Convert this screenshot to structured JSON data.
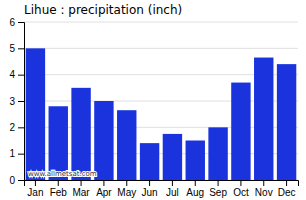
{
  "chart_data": {
    "type": "bar",
    "title": "Lihue : precipitation (inch)",
    "categories": [
      "Jan",
      "Feb",
      "Mar",
      "Apr",
      "May",
      "Jun",
      "Jul",
      "Aug",
      "Sep",
      "Oct",
      "Nov",
      "Dec"
    ],
    "values": [
      5.0,
      2.8,
      3.5,
      3.0,
      2.65,
      1.4,
      1.75,
      1.5,
      2.0,
      3.7,
      4.65,
      4.4
    ],
    "color": "#1a33dd",
    "ylim": [
      0,
      6
    ],
    "yticks": [
      0,
      1,
      2,
      3,
      4,
      5,
      6
    ],
    "grid": true,
    "annotations": [
      "www.allmetsat.com"
    ]
  }
}
